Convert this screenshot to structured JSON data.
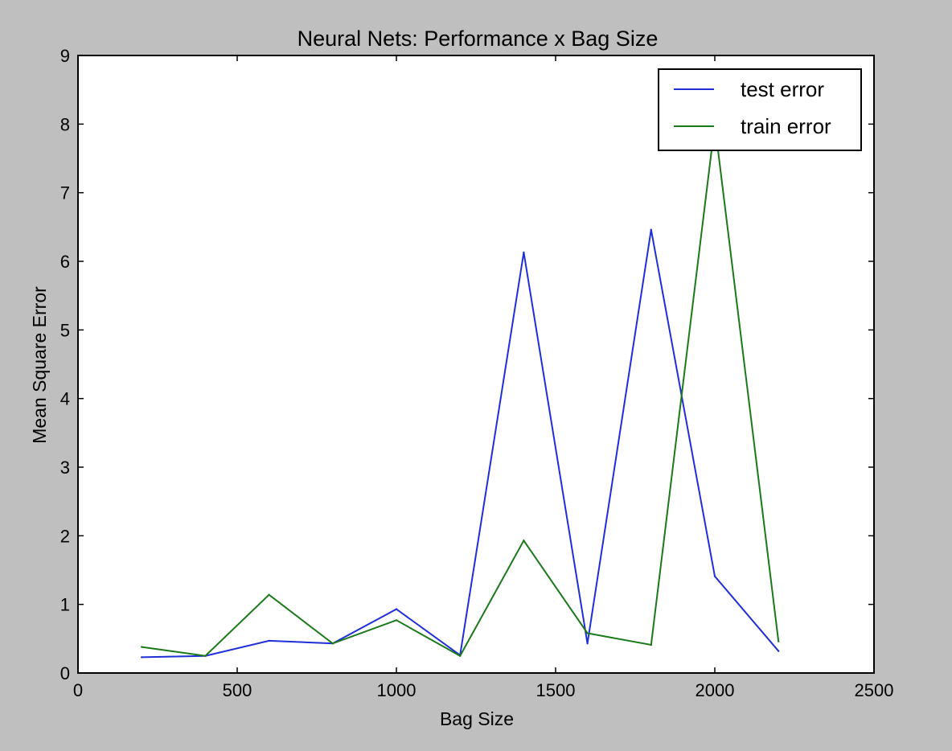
{
  "chart_data": {
    "type": "line",
    "title": "Neural Nets: Performance x Bag Size",
    "xlabel": "Bag Size",
    "ylabel": "Mean Square Error",
    "xlim": [
      0,
      2500
    ],
    "ylim": [
      0,
      9
    ],
    "xticks": [
      "0",
      "500",
      "1000",
      "1500",
      "2000",
      "2500"
    ],
    "yticks": [
      "0",
      "1",
      "2",
      "3",
      "4",
      "5",
      "6",
      "7",
      "8",
      "9"
    ],
    "grid": false,
    "legend_position": "top-right",
    "x": [
      200,
      400,
      600,
      800,
      1000,
      1200,
      1400,
      1600,
      1800,
      2000,
      2200
    ],
    "series": [
      {
        "name": "test error",
        "color": "#1f2fd8",
        "values": [
          0.23,
          0.25,
          0.47,
          0.43,
          0.93,
          0.26,
          6.13,
          0.43,
          6.46,
          1.41,
          0.32
        ]
      },
      {
        "name": "train error",
        "color": "#1a7a1a",
        "values": [
          0.38,
          0.25,
          1.14,
          0.43,
          0.77,
          0.25,
          1.93,
          0.58,
          0.41,
          8.0,
          0.46
        ]
      }
    ]
  }
}
